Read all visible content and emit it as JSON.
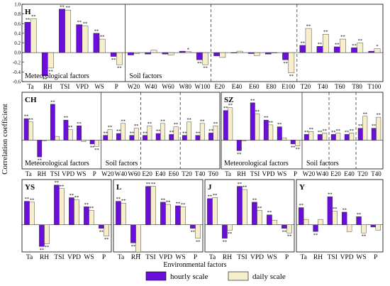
{
  "figure": {
    "ylabel": "Correlation coefficient",
    "xlabel": "Environmental factors",
    "legend": [
      {
        "name": "hourly scale",
        "color": "#6a0fd9"
      },
      {
        "name": "daily scale",
        "color": "#f7eecb"
      }
    ],
    "sig_mark": "**"
  },
  "chart_data": [
    {
      "id": "H",
      "type": "bar",
      "ylim": [
        -0.6,
        1.0
      ],
      "yticks": [
        -0.6,
        -0.4,
        -0.2,
        0.0,
        0.2,
        0.4,
        0.6,
        0.8,
        1.0
      ],
      "group_labels": [
        "Meteorological factors",
        "Soil factors"
      ],
      "categories": [
        "Ta",
        "RH",
        "TSI",
        "VPD",
        "WS",
        "P",
        "W20",
        "W40",
        "W60",
        "W80",
        "W100",
        "E20",
        "E40",
        "E60",
        "E80",
        "E100",
        "T20",
        "T40",
        "T60",
        "T80",
        "T100"
      ],
      "tick_labels": [
        "Ta",
        "RH",
        "TSI",
        "VPD",
        "WS",
        "P",
        "W20",
        "W40",
        "W60",
        "W80",
        "W100",
        "E20",
        "E40",
        "E60",
        "E80",
        "E100",
        "T20",
        "T40",
        "T60",
        "T80",
        "T100"
      ],
      "series": [
        {
          "name": "hourly scale",
          "values": [
            0.63,
            -0.48,
            0.9,
            0.58,
            0.4,
            -0.08,
            -0.05,
            -0.03,
            -0.03,
            0.03,
            -0.15,
            -0.07,
            0.0,
            -0.02,
            -0.03,
            -0.15,
            0.15,
            0.13,
            0.12,
            0.1,
            0.03
          ],
          "sig": [
            "**",
            "**",
            "**",
            "**",
            "**",
            "**",
            "",
            "",
            "",
            "",
            "**",
            "",
            "",
            "",
            "",
            "**",
            "**",
            "**",
            "**",
            "**",
            ""
          ]
        },
        {
          "name": "daily scale",
          "values": [
            0.7,
            -0.32,
            0.88,
            0.55,
            0.28,
            -0.25,
            -0.02,
            0.05,
            -0.05,
            0.02,
            -0.25,
            -0.1,
            0.03,
            -0.06,
            0.0,
            -0.42,
            0.5,
            0.38,
            0.28,
            0.2,
            0.08
          ],
          "sig": [
            "**",
            "**",
            "**",
            "**",
            "**",
            "**",
            "",
            "",
            "",
            "*",
            "**",
            "",
            "",
            "",
            "",
            "**",
            "**",
            "**",
            "**",
            "**",
            "*"
          ]
        }
      ],
      "dividers": [
        {
          "after": 5,
          "style": "solid"
        },
        {
          "after": 10,
          "style": "dashed"
        },
        {
          "after": 15,
          "style": "dashed"
        }
      ]
    },
    {
      "id": "CH",
      "type": "bar",
      "ylim": [
        -0.6,
        1.0
      ],
      "yticks": [],
      "group_labels": [
        "Meteorological factors",
        "Soil factors"
      ],
      "categories": [
        "Ta",
        "RH",
        "TSI",
        "VPD",
        "WS",
        "P",
        "W20",
        "W40",
        "W60",
        "E20",
        "E40",
        "E60",
        "T20",
        "T40",
        "T60"
      ],
      "tick_labels": [
        "Ta",
        "RH",
        "TSI",
        "VPD",
        "WS",
        "P",
        "W20",
        "W40",
        "W60",
        "E20",
        "E40",
        "E60",
        "T20",
        "T40",
        "T60"
      ],
      "series": [
        {
          "name": "hourly scale",
          "values": [
            0.45,
            -0.35,
            0.75,
            0.42,
            0.3,
            -0.08,
            0.1,
            0.14,
            0.1,
            0.1,
            0.14,
            0.12,
            0.1,
            0.1,
            0.15
          ],
          "sig": [
            "**",
            "**",
            "**",
            "**",
            "**",
            "**",
            "**",
            "**",
            "**",
            "**",
            "**",
            "**",
            "**",
            "**",
            "**"
          ]
        },
        {
          "name": "daily scale",
          "values": [
            0.38,
            -0.02,
            0.08,
            0.22,
            -0.03,
            -0.13,
            0.22,
            0.35,
            0.25,
            0.3,
            0.35,
            0.28,
            0.38,
            0.35,
            0.3
          ],
          "sig": [
            "**",
            "",
            "",
            "**",
            "",
            "**",
            "**",
            "**",
            "**",
            "**",
            "**",
            "**",
            "**",
            "**",
            "**"
          ]
        }
      ],
      "dividers": [
        {
          "after": 5,
          "style": "solid"
        },
        {
          "after": 8,
          "style": "dashed"
        },
        {
          "after": 11,
          "style": "dashed"
        }
      ]
    },
    {
      "id": "SZ",
      "type": "bar",
      "ylim": [
        -0.6,
        1.0
      ],
      "yticks": [],
      "group_labels": [
        "Meteorological factors",
        "Soil factors"
      ],
      "categories": [
        "Ta",
        "RH",
        "TSI",
        "VPD",
        "WS",
        "P",
        "W20",
        "W40",
        "E20",
        "E40",
        "T20",
        "T40"
      ],
      "tick_labels": [
        "Ta",
        "RH",
        "TSI",
        "VPD",
        "WS",
        "P",
        "W20",
        "W40",
        "E20",
        "E40",
        "T20",
        "T40"
      ],
      "series": [
        {
          "name": "hourly scale",
          "values": [
            0.62,
            -0.22,
            0.78,
            0.42,
            0.28,
            -0.08,
            0.12,
            0.12,
            0.12,
            0.12,
            0.25,
            0.25
          ],
          "sig": [
            "**",
            "**",
            "**",
            "**",
            "**",
            "**",
            "**",
            "**",
            "**",
            "**",
            "**",
            "**"
          ]
        },
        {
          "name": "daily scale",
          "values": [
            0.68,
            -0.02,
            0.55,
            0.32,
            0.05,
            -0.12,
            0.18,
            0.15,
            0.15,
            0.15,
            0.5,
            0.48
          ],
          "sig": [
            "**",
            "",
            "**",
            "**",
            "",
            "**",
            "**",
            "**",
            "**",
            "**",
            "**",
            "**"
          ]
        }
      ],
      "dividers": [
        {
          "after": 5,
          "style": "solid"
        },
        {
          "after": 7,
          "style": "dashed"
        },
        {
          "after": 9,
          "style": "dashed"
        }
      ]
    },
    {
      "id": "YS",
      "type": "bar",
      "ylim": [
        -0.6,
        1.0
      ],
      "yticks": [],
      "group_labels": [],
      "categories": [
        "Ta",
        "RH",
        "TSI",
        "VPD",
        "WS",
        "P"
      ],
      "tick_labels": [
        "Ta",
        "RH",
        "TSI",
        "VPD",
        "WS",
        "P"
      ],
      "series": [
        {
          "name": "hourly scale",
          "values": [
            0.52,
            -0.48,
            0.88,
            0.6,
            0.4,
            -0.08
          ],
          "sig": [
            "**",
            "**",
            "**",
            "**",
            "**",
            "**"
          ]
        },
        {
          "name": "daily scale",
          "values": [
            0.5,
            -0.42,
            0.8,
            0.55,
            0.32,
            -0.25
          ],
          "sig": [
            "**",
            "**",
            "**",
            "**",
            "**",
            "**"
          ]
        }
      ],
      "dividers": []
    },
    {
      "id": "L",
      "type": "bar",
      "ylim": [
        -0.6,
        1.0
      ],
      "yticks": [],
      "group_labels": [],
      "categories": [
        "Ta",
        "RH",
        "TSI",
        "VPD",
        "WS",
        "P"
      ],
      "tick_labels": [
        "Ta",
        "RH",
        "TSI",
        "VPD",
        "WS",
        "P"
      ],
      "series": [
        {
          "name": "hourly scale",
          "values": [
            0.52,
            -0.4,
            0.85,
            0.5,
            0.42,
            -0.08
          ],
          "sig": [
            "**",
            "**",
            "**",
            "**",
            "**",
            "**"
          ]
        },
        {
          "name": "daily scale",
          "values": [
            0.48,
            -0.6,
            0.85,
            0.45,
            0.4,
            -0.3
          ],
          "sig": [
            "**",
            "**",
            "**",
            "**",
            "**",
            "**"
          ]
        }
      ],
      "dividers": []
    },
    {
      "id": "J",
      "type": "bar",
      "ylim": [
        -0.6,
        1.0
      ],
      "yticks": [],
      "group_labels": [],
      "categories": [
        "Ta",
        "RH",
        "TSI",
        "VPD",
        "WS",
        "P"
      ],
      "tick_labels": [
        "Ta",
        "RH",
        "TSI",
        "VPD",
        "WS",
        "P"
      ],
      "series": [
        {
          "name": "hourly scale",
          "values": [
            0.58,
            -0.3,
            0.85,
            0.5,
            0.22,
            -0.08
          ],
          "sig": [
            "**",
            "**",
            "**",
            "**",
            "**",
            "**"
          ]
        },
        {
          "name": "daily scale",
          "values": [
            0.6,
            -0.12,
            0.78,
            0.32,
            0.1,
            -0.18
          ],
          "sig": [
            "**",
            "**",
            "**",
            "**",
            "",
            "**"
          ]
        }
      ],
      "dividers": []
    },
    {
      "id": "Y",
      "type": "bar",
      "ylim": [
        -0.6,
        1.0
      ],
      "yticks": [],
      "group_labels": [],
      "categories": [
        "Ta",
        "RH",
        "TSI",
        "VPD",
        "WS",
        "P"
      ],
      "tick_labels": [
        "Ta",
        "RH",
        "TSI",
        "VPD",
        "WS",
        "P"
      ],
      "series": [
        {
          "name": "hourly scale",
          "values": [
            0.38,
            -0.15,
            0.62,
            0.28,
            0.18,
            -0.05
          ],
          "sig": [
            "**",
            "**",
            "**",
            "**",
            "**",
            ""
          ]
        },
        {
          "name": "daily scale",
          "values": [
            0.12,
            0.12,
            0.3,
            -0.15,
            -0.18,
            -0.12
          ],
          "sig": [
            "",
            "",
            "**",
            "",
            "**",
            ""
          ]
        }
      ],
      "dividers": []
    }
  ]
}
